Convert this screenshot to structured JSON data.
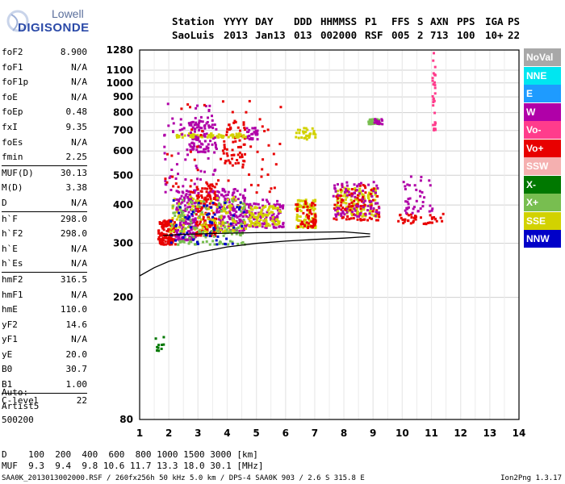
{
  "logo": {
    "line1": "Lowell",
    "line2": "DIGISONDE"
  },
  "header": {
    "labels": [
      "Station",
      "YYYY",
      "DAY",
      "DDD",
      "HHMMSS",
      "P1",
      "FFS",
      "S",
      "AXN",
      "PPS",
      "IGA",
      "PS"
    ],
    "values": [
      "SaoLuis",
      "2013",
      "Jan13",
      "013",
      "002000",
      "RSF",
      "005",
      "2",
      "713",
      "100",
      "10+",
      "22"
    ]
  },
  "params": [
    {
      "name": "foF2",
      "value": "8.900",
      "sep": false
    },
    {
      "name": "foF1",
      "value": "N/A",
      "sep": false
    },
    {
      "name": "foF1p",
      "value": "N/A",
      "sep": false
    },
    {
      "name": "foE",
      "value": "N/A",
      "sep": false
    },
    {
      "name": "foEp",
      "value": "0.48",
      "sep": false
    },
    {
      "name": "fxI",
      "value": "9.35",
      "sep": false
    },
    {
      "name": "foEs",
      "value": "N/A",
      "sep": false
    },
    {
      "name": "fmin",
      "value": "2.25",
      "sep": false
    },
    {
      "name": "MUF(D)",
      "value": "30.13",
      "sep": true
    },
    {
      "name": "M(D)",
      "value": "3.38",
      "sep": false
    },
    {
      "name": "D",
      "value": "N/A",
      "sep": false
    },
    {
      "name": "h`F",
      "value": "298.0",
      "sep": true
    },
    {
      "name": "h`F2",
      "value": "298.0",
      "sep": false
    },
    {
      "name": "h`E",
      "value": "N/A",
      "sep": false
    },
    {
      "name": "h`Es",
      "value": "N/A",
      "sep": false
    },
    {
      "name": "hmF2",
      "value": "316.5",
      "sep": true
    },
    {
      "name": "hmF1",
      "value": "N/A",
      "sep": false
    },
    {
      "name": "hmE",
      "value": "110.0",
      "sep": false
    },
    {
      "name": "yF2",
      "value": "14.6",
      "sep": false
    },
    {
      "name": "yF1",
      "value": "N/A",
      "sep": false
    },
    {
      "name": "yE",
      "value": "20.0",
      "sep": false
    },
    {
      "name": "B0",
      "value": "30.7",
      "sep": false
    },
    {
      "name": "B1",
      "value": "1.00",
      "sep": false
    },
    {
      "name": "C-level",
      "value": "22",
      "sep": true
    }
  ],
  "auto": {
    "line1": "Auto:",
    "line2": "Artist5",
    "line3": "500200"
  },
  "legend": [
    {
      "label": "NoVal",
      "color": "#a8a8a8"
    },
    {
      "label": "NNE",
      "color": "#00e6f0"
    },
    {
      "label": "E",
      "color": "#1e9bff"
    },
    {
      "label": "W",
      "color": "#b000a8"
    },
    {
      "label": "Vo-",
      "color": "#ff3c8c"
    },
    {
      "label": "Vo+",
      "color": "#e80000"
    },
    {
      "label": "SSW",
      "color": "#f5b0b0"
    },
    {
      "label": "X-",
      "color": "#007800"
    },
    {
      "label": "X+",
      "color": "#78be50"
    },
    {
      "label": "SSE",
      "color": "#d2d200"
    },
    {
      "label": "NNW",
      "color": "#0000c8"
    }
  ],
  "chart_data": {
    "type": "scatter",
    "xlim": [
      1,
      14
    ],
    "ylim": [
      80,
      1280
    ],
    "y_scale": "log",
    "grid": true,
    "x_ticks": [
      1,
      2,
      3,
      4,
      5,
      6,
      7,
      8,
      9,
      10,
      11,
      12,
      13,
      14
    ],
    "y_ticks": [
      80,
      200,
      300,
      400,
      500,
      600,
      700,
      800,
      900,
      1000,
      1100,
      1280
    ],
    "profile_curve": [
      [
        1.0,
        235
      ],
      [
        1.5,
        250
      ],
      [
        2.0,
        262
      ],
      [
        3.0,
        280
      ],
      [
        4.0,
        292
      ],
      [
        5.0,
        300
      ],
      [
        6.0,
        305
      ],
      [
        7.0,
        309
      ],
      [
        8.0,
        312
      ],
      [
        8.9,
        316
      ]
    ],
    "trace_curve": [
      [
        1.8,
        318
      ],
      [
        2.5,
        321
      ],
      [
        3.5,
        323
      ],
      [
        5.0,
        325
      ],
      [
        7.0,
        326
      ],
      [
        8.0,
        327
      ],
      [
        8.9,
        322
      ]
    ],
    "echo_clusters": [
      {
        "x": [
          1.6,
          2.2
        ],
        "y": [
          300,
          360
        ],
        "color": "#e80000",
        "n": 140
      },
      {
        "x": [
          2.2,
          2.9
        ],
        "y": [
          310,
          450
        ],
        "color": "#b000a8",
        "n": 150
      },
      {
        "x": [
          2.9,
          3.6
        ],
        "y": [
          320,
          480
        ],
        "color": "#e80000",
        "n": 160
      },
      {
        "x": [
          3.6,
          4.6
        ],
        "y": [
          330,
          460
        ],
        "color": "#b000a8",
        "n": 150
      },
      {
        "x": [
          2.0,
          4.6
        ],
        "y": [
          330,
          430
        ],
        "color": "#d2d200",
        "n": 140
      },
      {
        "x": [
          2.0,
          4.6
        ],
        "y": [
          300,
          420
        ],
        "color": "#78be50",
        "n": 120
      },
      {
        "x": [
          2.0,
          4.6
        ],
        "y": [
          300,
          420
        ],
        "color": "#0000c8",
        "n": 60
      },
      {
        "x": [
          4.6,
          5.9
        ],
        "y": [
          340,
          420
        ],
        "color": "#b000a8",
        "n": 110
      },
      {
        "x": [
          4.7,
          5.8
        ],
        "y": [
          345,
          400
        ],
        "color": "#d2d200",
        "n": 90
      },
      {
        "x": [
          6.3,
          7.0
        ],
        "y": [
          340,
          420
        ],
        "color": "#d2d200",
        "n": 90
      },
      {
        "x": [
          6.3,
          7.0
        ],
        "y": [
          340,
          420
        ],
        "color": "#e80000",
        "n": 50
      },
      {
        "x": [
          7.7,
          9.1
        ],
        "y": [
          370,
          460
        ],
        "color": "#d2d200",
        "n": 130
      },
      {
        "x": [
          7.6,
          9.2
        ],
        "y": [
          360,
          470
        ],
        "color": "#e80000",
        "n": 90
      },
      {
        "x": [
          7.6,
          9.2
        ],
        "y": [
          370,
          480
        ],
        "color": "#b000a8",
        "n": 80
      },
      {
        "x": [
          2.6,
          3.6
        ],
        "y": [
          600,
          760
        ],
        "color": "#b000a8",
        "n": 80
      },
      {
        "x": [
          3.8,
          4.6
        ],
        "y": [
          550,
          760
        ],
        "color": "#e80000",
        "n": 60
      },
      {
        "x": [
          4.6,
          5.0
        ],
        "y": [
          660,
          720
        ],
        "color": "#b000a8",
        "n": 30
      },
      {
        "x": [
          2.1,
          4.6
        ],
        "y": [
          670,
          690
        ],
        "color": "#d2d200",
        "n": 70
      },
      {
        "x": [
          6.3,
          7.0
        ],
        "y": [
          660,
          720
        ],
        "color": "#d2d200",
        "n": 30
      },
      {
        "x": [
          8.8,
          9.2
        ],
        "y": [
          740,
          770
        ],
        "color": "#78be50",
        "n": 25
      },
      {
        "x": [
          9.0,
          9.3
        ],
        "y": [
          740,
          770
        ],
        "color": "#b000a8",
        "n": 15
      },
      {
        "x": [
          9.8,
          11.4
        ],
        "y": [
          350,
          380
        ],
        "color": "#e80000",
        "n": 40
      },
      {
        "x": [
          10.0,
          11.0
        ],
        "y": [
          380,
          500
        ],
        "color": "#b000a8",
        "n": 40
      },
      {
        "x": [
          1.8,
          3.6
        ],
        "y": [
          440,
          880
        ],
        "color": "#b000a8",
        "n": 80
      },
      {
        "x": [
          1.8,
          5.8
        ],
        "y": [
          440,
          880
        ],
        "color": "#e80000",
        "n": 60
      },
      {
        "x": [
          11.0,
          11.1
        ],
        "y": [
          700,
          1280
        ],
        "color": "#ff3c8c",
        "n": 30
      },
      {
        "x": [
          1.5,
          1.8
        ],
        "y": [
          135,
          150
        ],
        "color": "#007800",
        "n": 10
      }
    ]
  },
  "axis": {
    "x_label_top": "",
    "y_label": ""
  },
  "bottom": {
    "dist_label": "D",
    "dist_values": "100  200  400  600  800 1000 1500 3000 [km]",
    "muf_label": "MUF",
    "muf_values": "9.3  9.4  9.8 10.6 11.7 13.3 18.0 30.1 [MHz]"
  },
  "footer": {
    "left": "SAA0K_2013013002000.RSF / 260fx256h 50 kHz 5.0 km / DPS-4 SAA0K 903 / 2.6 S 315.8 E",
    "right": "Ion2Png 1.3.17"
  }
}
